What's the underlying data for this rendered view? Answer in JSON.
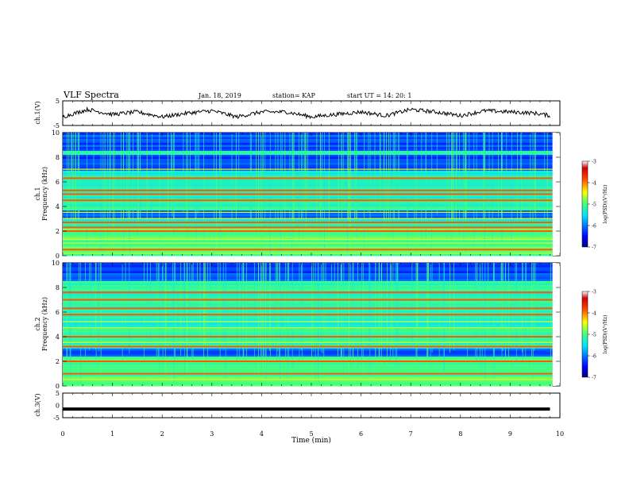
{
  "header": {
    "title": "VLF Spectra",
    "date": "Jan. 18, 2019",
    "station": "station= KAP",
    "start": "start UT =   14: 20: 1"
  },
  "colorbar": {
    "label": "log(PSD)(V²/Hz)",
    "ticks": [
      "-3",
      "-4",
      "-5",
      "-6",
      "-7"
    ]
  },
  "chart_data": [
    {
      "type": "line",
      "panel": "ch1-waveform",
      "ylabel": "ch.1(V)",
      "ylim": [
        -5,
        5
      ],
      "yticks": [
        "5",
        "-5"
      ],
      "xlim": [
        0,
        10
      ],
      "x": [
        0,
        0.5,
        1,
        1.5,
        2,
        2.5,
        3,
        3.5,
        4,
        4.5,
        5,
        5.5,
        6,
        6.5,
        7,
        7.5,
        8,
        8.5,
        9,
        9.5,
        9.8
      ],
      "y": [
        -1.5,
        1.5,
        -0.5,
        0.5,
        -1.5,
        0.0,
        1.0,
        -1.5,
        0.5,
        0.5,
        -1.5,
        -0.5,
        0.5,
        -1.0,
        1.5,
        0.5,
        -1.0,
        1.0,
        0.5,
        0.0,
        -1.0
      ]
    },
    {
      "type": "heatmap",
      "panel": "ch1-spectrogram",
      "ylabel": "ch.1\nFrequency (kHz)",
      "ylim": [
        0,
        10
      ],
      "yticks": [
        "0",
        "2",
        "4",
        "6",
        "8",
        "10"
      ],
      "xlim": [
        0,
        10
      ],
      "zlim": [
        -7,
        -3
      ],
      "bands_khz": [
        0.5,
        1.0,
        1.3,
        2.0,
        2.3,
        2.7,
        3.0,
        3.5,
        4.5,
        5.0,
        5.3,
        6.3,
        7.0
      ],
      "quiet_bands_khz": [
        [
          8.5,
          10
        ],
        [
          7.0,
          8.2
        ],
        [
          3.0,
          3.7
        ]
      ]
    },
    {
      "type": "heatmap",
      "panel": "ch2-spectrogram",
      "ylabel": "ch.2\nFrequency (kHz)",
      "ylim": [
        0,
        10
      ],
      "yticks": [
        "0",
        "2",
        "4",
        "6",
        "8",
        "10"
      ],
      "xlim": [
        0,
        10
      ],
      "zlim": [
        -7,
        -3
      ],
      "bands_khz": [
        0.5,
        1.0,
        2.0,
        3.2,
        3.5,
        4.0,
        4.7,
        5.2,
        5.8,
        6.3,
        7.0,
        7.6
      ],
      "quiet_bands_khz": [
        [
          8.5,
          10
        ],
        [
          2.5,
          3.1
        ]
      ]
    },
    {
      "type": "line",
      "panel": "ch3-waveform",
      "ylabel": "ch.3(V)",
      "ylim": [
        -5,
        5
      ],
      "yticks": [
        "5",
        "0",
        "-5"
      ],
      "xlim": [
        0,
        10
      ],
      "x": [
        0,
        9.8
      ],
      "y": [
        -1.5,
        -1.5
      ]
    }
  ],
  "xaxis": {
    "label": "Time (min)",
    "ticks": [
      "0",
      "1",
      "2",
      "3",
      "4",
      "5",
      "6",
      "7",
      "8",
      "9",
      "10"
    ]
  }
}
